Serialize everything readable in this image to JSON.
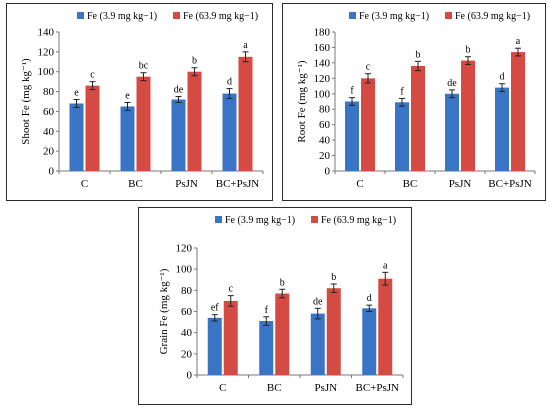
{
  "colors": {
    "low_fe": "#3a74c4",
    "high_fe": "#d54b43"
  },
  "chart_data": [
    {
      "type": "bar",
      "categories": [
        "C",
        "BC",
        "PsJN",
        "BC+PsJN"
      ],
      "ylabel": "Shoot Fe (mg kg⁻¹)",
      "ylim": [
        0,
        140
      ],
      "yticks": [
        0,
        20,
        40,
        60,
        80,
        100,
        120,
        140
      ],
      "series": [
        {
          "name": "Fe (3.9 mg kg−1)",
          "values": [
            68,
            65,
            72,
            78
          ],
          "errors": [
            4,
            4,
            3,
            5
          ],
          "letters": [
            "e",
            "e",
            "de",
            "d"
          ]
        },
        {
          "name": "Fe (63.9 mg kg−1)",
          "values": [
            86,
            95,
            100,
            115
          ],
          "errors": [
            4,
            4,
            4,
            5
          ],
          "letters": [
            "c",
            "bc",
            "b",
            "a"
          ]
        }
      ]
    },
    {
      "type": "bar",
      "categories": [
        "C",
        "BC",
        "PsJN",
        "BC+PsJN"
      ],
      "ylabel": "Root Fe (mg kg⁻¹)",
      "ylim": [
        0,
        180
      ],
      "yticks": [
        0,
        20,
        40,
        60,
        80,
        100,
        120,
        140,
        160,
        180
      ],
      "series": [
        {
          "name": "Fe (3.9 mg kg−1)",
          "values": [
            90,
            89,
            100,
            108
          ],
          "errors": [
            5,
            5,
            5,
            5
          ],
          "letters": [
            "f",
            "f",
            "de",
            "d"
          ]
        },
        {
          "name": "Fe (63.9 mg kg−1)",
          "values": [
            120,
            136,
            143,
            154
          ],
          "errors": [
            6,
            6,
            5,
            5
          ],
          "letters": [
            "c",
            "b",
            "b",
            "a"
          ]
        }
      ]
    },
    {
      "type": "bar",
      "categories": [
        "C",
        "BC",
        "PsJN",
        "BC+PsJN"
      ],
      "ylabel": "Grain Fe (mg kg⁻¹)",
      "ylim": [
        0,
        120
      ],
      "yticks": [
        0,
        20,
        40,
        60,
        80,
        100,
        120
      ],
      "series": [
        {
          "name": "Fe (3.9 mg kg−1)",
          "values": [
            54,
            51,
            58,
            63
          ],
          "errors": [
            3,
            4,
            5,
            3
          ],
          "letters": [
            "ef",
            "f",
            "de",
            "d"
          ]
        },
        {
          "name": "Fe (63.9 mg kg−1)",
          "values": [
            70,
            77,
            82,
            91
          ],
          "errors": [
            5,
            4,
            4,
            6
          ],
          "letters": [
            "c",
            "b",
            "b",
            "a"
          ]
        }
      ]
    }
  ]
}
